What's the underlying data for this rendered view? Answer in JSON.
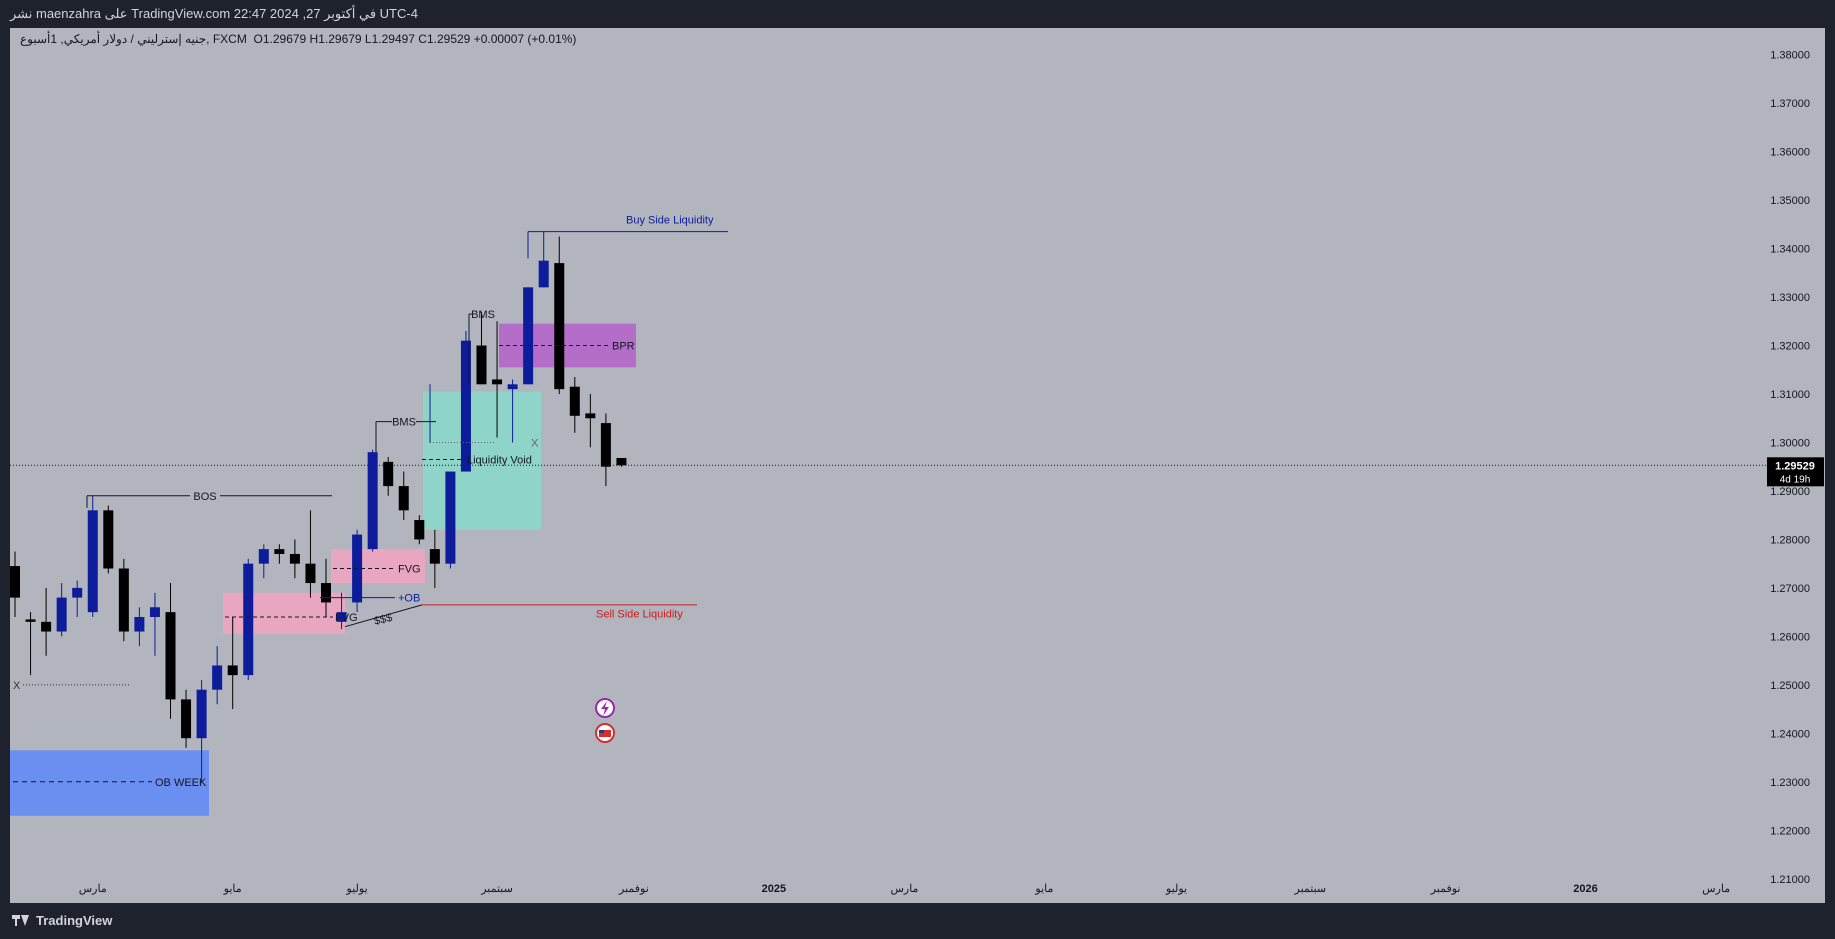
{
  "header": {
    "published": "نشر maenzahra على TradingView.com 22:47 2024 ,27 في أكتوبر UTC-4"
  },
  "legend": {
    "symbol": "جنيه إسترليني / دولار أمريكي, 1أسبوع, FXCM",
    "ohlc": "O1.29679  H1.29679  L1.29497  C1.29529  +0.00007 (+0.01%)"
  },
  "price_badge": {
    "value": "1.29529",
    "countdown": "4d 19h"
  },
  "footer": {
    "brand": "TradingView"
  },
  "colors": {
    "bull": "#0c1c9a",
    "bear": "#000000",
    "background": "#b2b5be"
  },
  "chart_data": {
    "type": "candlestick",
    "ylim": [
      1.205,
      1.3855
    ],
    "y_ticks": [
      "1.38000",
      "1.37000",
      "1.36000",
      "1.35000",
      "1.34000",
      "1.33000",
      "1.32000",
      "1.31000",
      "1.30000",
      "1.29000",
      "1.28000",
      "1.27000",
      "1.26000",
      "1.25000",
      "1.24000",
      "1.23000",
      "1.22000",
      "1.21000"
    ],
    "x_labels": [
      {
        "label": "مارس",
        "bar": 5
      },
      {
        "label": "مايو",
        "bar": 14
      },
      {
        "label": "يوليو",
        "bar": 22
      },
      {
        "label": "سبتمبر",
        "bar": 31
      },
      {
        "label": "نوفمبر",
        "bar": 39.8
      },
      {
        "label": "2025",
        "bar": 48.8
      },
      {
        "label": "مارس",
        "bar": 57.2
      },
      {
        "label": "مايو",
        "bar": 66.2
      },
      {
        "label": "يوليو",
        "bar": 74.7
      },
      {
        "label": "سبتمبر",
        "bar": 83.3
      },
      {
        "label": "نوفمبر",
        "bar": 92
      },
      {
        "label": "2026",
        "bar": 101
      },
      {
        "label": "مارس",
        "bar": 109.4
      }
    ],
    "candles": [
      {
        "o": 1.2745,
        "h": 1.2775,
        "l": 1.264,
        "c": 1.268
      },
      {
        "o": 1.2635,
        "h": 1.265,
        "l": 1.252,
        "c": 1.263
      },
      {
        "o": 1.263,
        "h": 1.27,
        "l": 1.256,
        "c": 1.261
      },
      {
        "o": 1.261,
        "h": 1.271,
        "l": 1.26,
        "c": 1.268
      },
      {
        "o": 1.268,
        "h": 1.2715,
        "l": 1.264,
        "c": 1.27
      },
      {
        "o": 1.265,
        "h": 1.289,
        "l": 1.264,
        "c": 1.286
      },
      {
        "o": 1.286,
        "h": 1.287,
        "l": 1.273,
        "c": 1.274
      },
      {
        "o": 1.274,
        "h": 1.276,
        "l": 1.259,
        "c": 1.261
      },
      {
        "o": 1.261,
        "h": 1.266,
        "l": 1.258,
        "c": 1.264
      },
      {
        "o": 1.264,
        "h": 1.269,
        "l": 1.256,
        "c": 1.266
      },
      {
        "o": 1.265,
        "h": 1.271,
        "l": 1.243,
        "c": 1.247
      },
      {
        "o": 1.247,
        "h": 1.249,
        "l": 1.237,
        "c": 1.239
      },
      {
        "o": 1.239,
        "h": 1.251,
        "l": 1.23,
        "c": 1.249
      },
      {
        "o": 1.249,
        "h": 1.258,
        "l": 1.246,
        "c": 1.254
      },
      {
        "o": 1.254,
        "h": 1.264,
        "l": 1.245,
        "c": 1.252
      },
      {
        "o": 1.252,
        "h": 1.276,
        "l": 1.251,
        "c": 1.275
      },
      {
        "o": 1.275,
        "h": 1.279,
        "l": 1.272,
        "c": 1.278
      },
      {
        "o": 1.278,
        "h": 1.279,
        "l": 1.275,
        "c": 1.277
      },
      {
        "o": 1.277,
        "h": 1.28,
        "l": 1.272,
        "c": 1.275
      },
      {
        "o": 1.275,
        "h": 1.286,
        "l": 1.268,
        "c": 1.271
      },
      {
        "o": 1.271,
        "h": 1.276,
        "l": 1.264,
        "c": 1.267
      },
      {
        "o": 1.263,
        "h": 1.269,
        "l": 1.2615,
        "c": 1.265
      },
      {
        "o": 1.267,
        "h": 1.282,
        "l": 1.265,
        "c": 1.281
      },
      {
        "o": 1.278,
        "h": 1.2985,
        "l": 1.2775,
        "c": 1.298
      },
      {
        "o": 1.296,
        "h": 1.297,
        "l": 1.289,
        "c": 1.291
      },
      {
        "o": 1.291,
        "h": 1.294,
        "l": 1.284,
        "c": 1.286
      },
      {
        "o": 1.284,
        "h": 1.285,
        "l": 1.279,
        "c": 1.28
      },
      {
        "o": 1.278,
        "h": 1.282,
        "l": 1.27,
        "c": 1.275
      },
      {
        "o": 1.275,
        "h": 1.294,
        "l": 1.274,
        "c": 1.294
      },
      {
        "o": 1.294,
        "h": 1.323,
        "l": 1.294,
        "c": 1.321
      },
      {
        "o": 1.32,
        "h": 1.327,
        "l": 1.312,
        "c": 1.312
      },
      {
        "o": 1.313,
        "h": 1.325,
        "l": 1.301,
        "c": 1.312
      },
      {
        "o": 1.311,
        "h": 1.313,
        "l": 1.3,
        "c": 1.312
      },
      {
        "o": 1.312,
        "h": 1.332,
        "l": 1.312,
        "c": 1.332
      },
      {
        "o": 1.332,
        "h": 1.3435,
        "l": 1.332,
        "c": 1.3375
      },
      {
        "o": 1.337,
        "h": 1.3425,
        "l": 1.31,
        "c": 1.311
      },
      {
        "o": 1.3115,
        "h": 1.3135,
        "l": 1.302,
        "c": 1.3055
      },
      {
        "o": 1.306,
        "h": 1.31,
        "l": 1.299,
        "c": 1.305
      },
      {
        "o": 1.304,
        "h": 1.306,
        "l": 1.291,
        "c": 1.295
      },
      {
        "o": 1.2968,
        "h": 1.2968,
        "l": 1.295,
        "c": 1.2953
      }
    ],
    "current_price": 1.29529,
    "annotations": {
      "bos": "BOS",
      "bms_1": "BMS",
      "bms_2": "BMS",
      "fvg_1": "FVG",
      "fvg_2": "FVG",
      "ob_plus": "+OB",
      "sss": "$$$",
      "ob_week": "OB WEEK",
      "liquidity_void": "Liquidity Void",
      "bpr": "BPR",
      "buy_side": "Buy Side Liquidity",
      "sell_side": "Sell Side Liquidity",
      "x_1": "X",
      "x_2": "X"
    }
  }
}
